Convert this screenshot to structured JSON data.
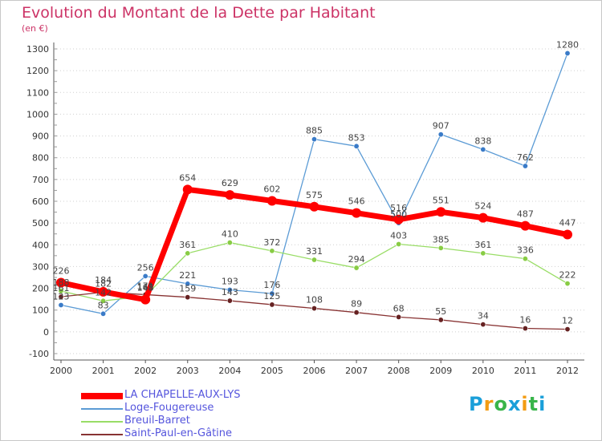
{
  "chart_data": {
    "type": "line",
    "title": "Evolution du Montant de la Dette par Habitant",
    "subtitle": "(en €)",
    "x": [
      "2000",
      "2001",
      "2002",
      "2003",
      "2004",
      "2005",
      "2006",
      "2007",
      "2008",
      "2009",
      "2010",
      "2011",
      "2012"
    ],
    "yticks": [
      "1300",
      "1200",
      "1100",
      "1000",
      "900",
      "800",
      "700",
      "600",
      "500",
      "400",
      "300",
      "200",
      "100",
      "0",
      "-100"
    ],
    "ylim": [
      -100,
      1300
    ],
    "grid": "horizontal dotted",
    "legend_position": "bottom-left",
    "series": [
      {
        "name": "LA CHAPELLE-AUX-LYS",
        "color": "#ff0000",
        "width": 7,
        "values": [
          226,
          184,
          148,
          654,
          629,
          602,
          575,
          546,
          516,
          551,
          524,
          487,
          447
        ],
        "labels": [
          "226",
          "184",
          "148",
          "654",
          "629",
          "602",
          "575",
          "546",
          "516",
          "551",
          "524",
          "487",
          "447"
        ]
      },
      {
        "name": "Loge-Fougereuse",
        "color": "#5b9bd5",
        "width": 1.3,
        "marker": "#3a7bc8",
        "values": [
          123,
          83,
          256,
          221,
          193,
          176,
          885,
          853,
          500,
          907,
          838,
          762,
          1280
        ],
        "labels": [
          "123",
          "83",
          "256",
          "221",
          "193",
          "176",
          "885",
          "853",
          "500",
          "907",
          "838",
          "762",
          "1280"
        ]
      },
      {
        "name": "Breuil-Barret",
        "color": "#99dd66",
        "width": 1.3,
        "marker": "#88cc44",
        "values": [
          188,
          142,
          165,
          361,
          410,
          372,
          331,
          294,
          403,
          385,
          361,
          336,
          222
        ],
        "labels": [
          "188",
          "142",
          "165",
          "361",
          "410",
          "372",
          "331",
          "294",
          "403",
          "385",
          "361",
          "336",
          "222"
        ]
      },
      {
        "name": "Saint-Paul-en-Gâtine",
        "color": "#883333",
        "width": 1.3,
        "marker": "#662222",
        "values": [
          161,
          182,
          171,
          159,
          143,
          125,
          108,
          89,
          68,
          55,
          34,
          16,
          12
        ],
        "labels": [
          "161",
          "182",
          "171",
          "159",
          "143",
          "125",
          "108",
          "89",
          "68",
          "55",
          "34",
          "16",
          "12"
        ]
      }
    ]
  },
  "logo": {
    "letters": [
      "P",
      "r",
      "o",
      "x",
      "i",
      "t",
      "i"
    ],
    "colors": [
      "#1a9fd9",
      "#f39c12",
      "#39b54a",
      "#1a9fd9",
      "#f39c12",
      "#39b54a",
      "#1a9fd9"
    ]
  }
}
